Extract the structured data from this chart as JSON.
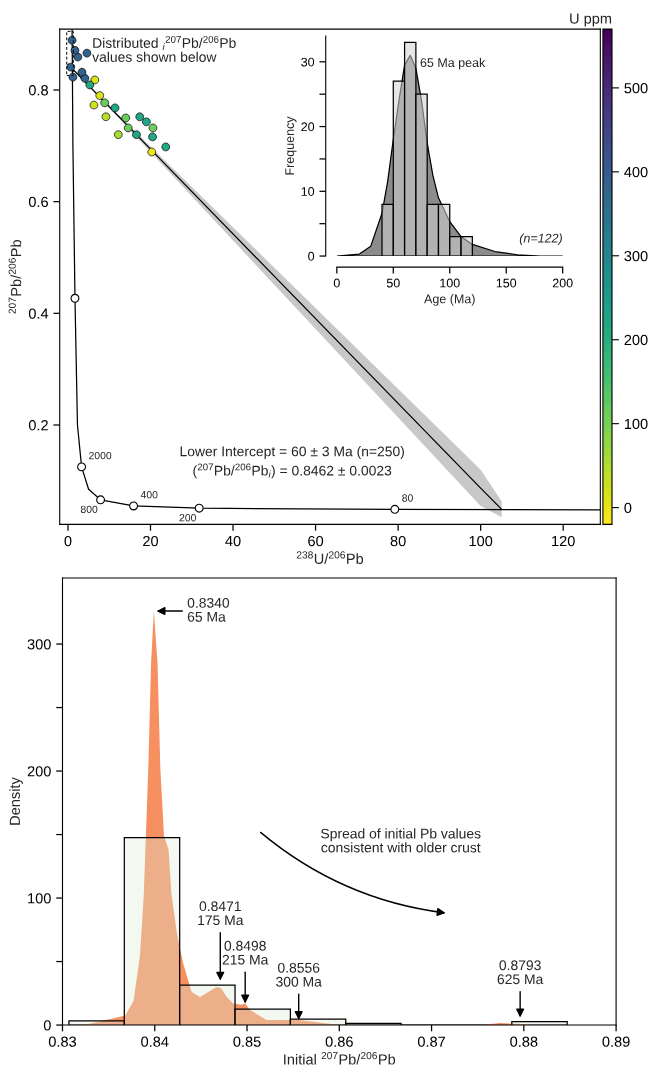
{
  "chart_data": [
    {
      "type": "scatter",
      "xlabel": "$^{238}$U/$^{206}$Pb",
      "ylabel": "$^{207}$Pb/$^{206}$Pb",
      "clabel": "U ppm",
      "xlim": [
        -2,
        129
      ],
      "ylim": [
        0.022,
        0.909
      ],
      "xticks": [
        0,
        20,
        40,
        60,
        80,
        100,
        120
      ],
      "yticks": [
        0.2,
        0.4,
        0.6,
        0.8
      ],
      "clim": [
        -20,
        570
      ],
      "cticks": [
        0,
        100,
        200,
        300,
        400,
        500
      ],
      "annotations": [
        "Distributed $_{i}$$^{207}$Pb/$^{206}$Pb\nvalues shown below",
        "Lower Intercept = 60 ± 3 Ma (n=250)",
        "($^{207}$Pb/$^{206}$Pb$_{i}$) = 0.8462 ± 0.0023",
        {
          "text": "2000",
          "x": 3.3,
          "y": 0.125
        },
        {
          "text": "800",
          "x": 7.9,
          "y": 0.066
        },
        {
          "text": "400",
          "x": 15.9,
          "y": 0.055
        },
        {
          "text": "200",
          "x": 31.8,
          "y": 0.051
        },
        {
          "text": "80",
          "x": 79.2,
          "y": 0.049
        }
      ],
      "series": [
        {
          "type": "line",
          "color": "#000000",
          "x": [
            0,
            20,
            100,
            105.1
          ],
          "values": [
            0.846,
            0.694,
            0.087,
            0.049
          ],
          "lower": [
            0.846,
            0.689,
            0.055,
            0.035
          ],
          "upper": [
            0.846,
            0.699,
            0.12,
            0.063
          ]
        },
        {
          "type": "line",
          "color": "#000000",
          "x": [
            1.0,
            1.2,
            1.7,
            2.3,
            3.3,
            5,
            7.9,
            15.9,
            31.8,
            79.2,
            129
          ],
          "values": [
            0.909,
            0.7,
            0.427,
            0.2,
            0.125,
            0.085,
            0.066,
            0.055,
            0.051,
            0.049,
            0.048
          ]
        },
        {
          "type": "scatter",
          "marker": "circle",
          "color": "#ffffff",
          "x": [
            1.7,
            3.3,
            7.9,
            15.9,
            31.8,
            79.2
          ],
          "values": [
            0.427,
            0.125,
            0.066,
            0.055,
            0.051,
            0.049
          ]
        },
        {
          "type": "scatter",
          "x": [
            20.3,
            23.7,
            20.6,
            20.5,
            19,
            17.4,
            16.6,
            14.6,
            14,
            12.2,
            11.4,
            9.2,
            8.9,
            7.7,
            6.3,
            6.5,
            5.3,
            4.1,
            3.4,
            2.4,
            1.7,
            1,
            0.7,
            1.2,
            4.6
          ],
          "values": [
            0.689,
            0.698,
            0.732,
            0.716,
            0.743,
            0.752,
            0.72,
            0.732,
            0.75,
            0.72,
            0.768,
            0.752,
            0.777,
            0.79,
            0.773,
            0.818,
            0.809,
            0.821,
            0.832,
            0.859,
            0.871,
            0.889,
            0.841,
            0.823,
            0.866
          ],
          "colors": [
            "#ece51b",
            "#22a785",
            "#6ccd5a",
            "#22a785",
            "#22a785",
            "#22a785",
            "#22a785",
            "#6ccd5a",
            "#6ccd5a",
            "#a8db34",
            "#22a785",
            "#bade28",
            "#6ccd5a",
            "#dde318",
            "#cde11d",
            "#dde318",
            "#22a785",
            "#33638d",
            "#33638d",
            "#33638d",
            "#33638d",
            "#33638d",
            "#33638d",
            "#33638d",
            "#33638d"
          ]
        }
      ]
    },
    {
      "type": "histogram",
      "xlabel": "Age (Ma)",
      "ylabel": "Frequency",
      "color": "#d2d2d2",
      "bins": [
        40,
        50,
        60,
        70,
        80,
        90,
        100,
        110,
        120
      ],
      "values": [
        8,
        27,
        33,
        25,
        8,
        8,
        3,
        3
      ],
      "xlim": [
        0,
        200
      ],
      "ylim": [
        0,
        34
      ],
      "xticks": [
        0,
        50,
        100,
        150,
        200
      ],
      "yticks": [
        0,
        {
          "value": 5,
          "label": null
        },
        10,
        {
          "value": 15,
          "label": null
        },
        20,
        {
          "value": 25,
          "label": null
        },
        30
      ],
      "annotations": [
        {
          "text": "65 Ma peak",
          "x": 65,
          "y": 31
        },
        "(n=122)"
      ],
      "series": [
        {
          "type": "area",
          "color": "#8c8c8c",
          "x": [
            0,
            20,
            30,
            40,
            45,
            50,
            55,
            60,
            65,
            70,
            75,
            80,
            85,
            90,
            100,
            110,
            120,
            140,
            160,
            180,
            200
          ],
          "values": [
            0,
            0.3,
            1.5,
            6.6,
            11.5,
            18,
            24,
            29.5,
            31,
            29,
            24,
            17.5,
            12.5,
            9,
            5.3,
            3,
            1.8,
            0.7,
            0.2,
            0,
            0
          ]
        }
      ]
    },
    {
      "type": "histogram",
      "xlabel": "Initial $^{207}$Pb/$^{206}$Pb",
      "ylabel": "Density",
      "color": "#dcecd4",
      "bins": [
        0.8307,
        0.8367,
        0.8427,
        0.8487,
        0.8547,
        0.8607,
        0.8667,
        0.8727,
        0.8787,
        0.8847
      ],
      "values": [
        3.3,
        147.5,
        31.5,
        12.5,
        4.6,
        1.3,
        0,
        0,
        2.6
      ],
      "xlim": [
        0.83,
        0.89
      ],
      "ylim": [
        0,
        352
      ],
      "xticks": [
        0.83,
        0.84,
        0.85,
        0.86,
        0.87,
        0.88,
        0.89
      ],
      "yticks": [
        0,
        {
          "value": 50,
          "label": null
        },
        100,
        {
          "value": 150,
          "label": null
        },
        200,
        {
          "value": 250,
          "label": null
        },
        300
      ],
      "annotations": [
        {
          "text": "0.8340\n65 Ma",
          "x": 0.8402,
          "y": 326
        },
        {
          "text": "0.8471\n175 Ma",
          "x": 0.8471,
          "y": 35
        },
        {
          "text": "0.8498\n215 Ma",
          "x": 0.8498,
          "y": 17
        },
        {
          "text": "0.8556\n300 Ma",
          "x": 0.8556,
          "y": 4
        },
        {
          "text": "0.8793\n625 Ma",
          "x": 0.8796,
          "y": 6
        },
        "Spread of initial Pb values\nconsistent with older crust"
      ],
      "series": [
        {
          "type": "area",
          "color": "#f47c45",
          "x": [
            0.8323,
            0.8359,
            0.8368,
            0.8377,
            0.8384,
            0.8388,
            0.8393,
            0.8396,
            0.8399,
            0.8403,
            0.8406,
            0.841,
            0.8415,
            0.8418,
            0.8424,
            0.8431,
            0.844,
            0.8449,
            0.8458,
            0.8467,
            0.8472,
            0.8478,
            0.8485,
            0.8494,
            0.8498,
            0.8503,
            0.8521,
            0.8548,
            0.8556,
            0.8594,
            0.8616,
            0.8752,
            0.8774,
            0.8792,
            0.882
          ],
          "values": [
            0,
            5.9,
            7.5,
            19,
            55,
            101,
            203,
            285,
            326,
            285,
            203,
            149,
            138,
            104,
            72,
            48,
            26,
            22,
            26,
            30,
            29,
            22,
            17,
            16,
            17,
            12,
            4,
            4,
            4,
            0.7,
            0,
            0,
            1.6,
            1,
            0
          ]
        }
      ]
    }
  ]
}
